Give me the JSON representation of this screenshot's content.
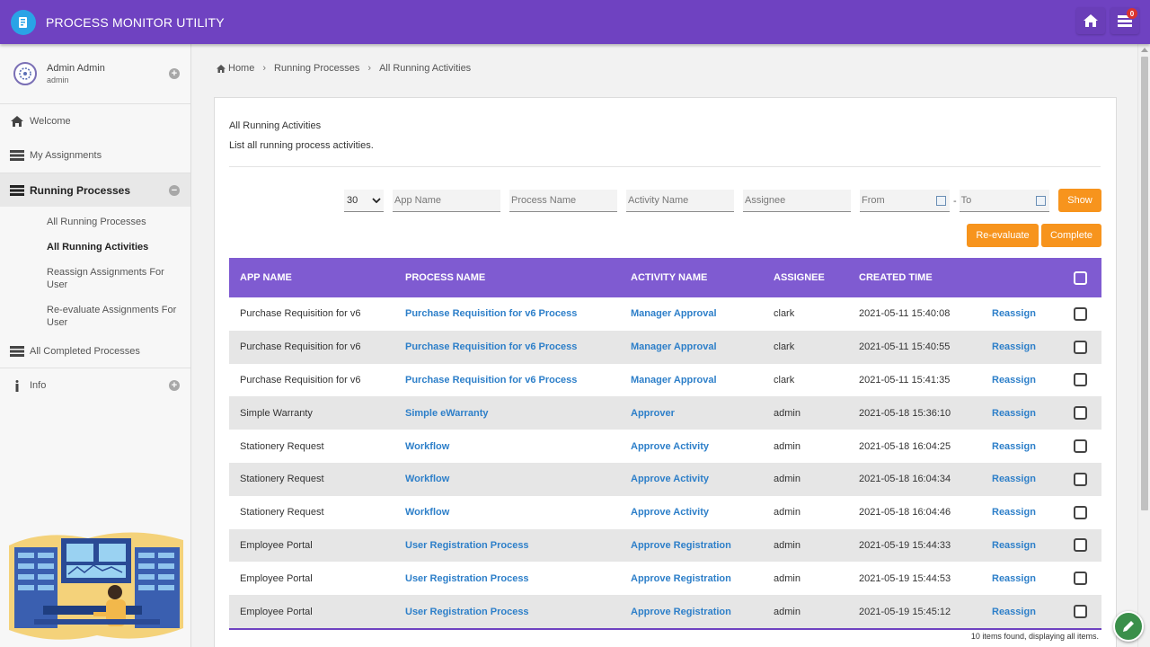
{
  "header": {
    "title": "PROCESS MONITOR UTILITY",
    "notification_count": "0",
    "icons": [
      "app-logo-icon",
      "home-icon",
      "notifications-icon"
    ]
  },
  "sidebar": {
    "user": {
      "name": "Admin Admin",
      "role": "admin"
    },
    "items": [
      {
        "label": "Welcome",
        "icon": "home-icon"
      },
      {
        "label": "My Assignments",
        "icon": "list-icon"
      },
      {
        "label": "Running Processes",
        "icon": "list-icon"
      },
      {
        "label": "All Completed Processes",
        "icon": "list-icon"
      },
      {
        "label": "Info",
        "icon": "info-icon"
      }
    ],
    "sub_items": [
      "All Running Processes",
      "All Running Activities",
      "Reassign Assignments For User",
      "Re-evaluate Assignments For User"
    ]
  },
  "breadcrumb": {
    "home": "Home",
    "level1": "Running Processes",
    "level2": "All Running Activities"
  },
  "panel": {
    "title": "All Running Activities",
    "description": "List all running process activities."
  },
  "filters": {
    "page_size": "30",
    "app_name_placeholder": "App Name",
    "process_name_placeholder": "Process Name",
    "activity_name_placeholder": "Activity Name",
    "assignee_placeholder": "Assignee",
    "from_placeholder": "From",
    "to_placeholder": "To",
    "dash": "-",
    "show_label": "Show"
  },
  "actions": {
    "reevaluate_label": "Re-evaluate",
    "complete_label": "Complete"
  },
  "table": {
    "headers": [
      "APP NAME",
      "PROCESS NAME",
      "ACTIVITY NAME",
      "ASSIGNEE",
      "CREATED TIME"
    ],
    "rows": [
      {
        "app": "Purchase Requisition for v6",
        "process": "Purchase Requisition for v6 Process",
        "activity": "Manager Approval",
        "assignee": "clark",
        "created": "2021-05-11 15:40:08",
        "action": "Reassign"
      },
      {
        "app": "Purchase Requisition for v6",
        "process": "Purchase Requisition for v6 Process",
        "activity": "Manager Approval",
        "assignee": "clark",
        "created": "2021-05-11 15:40:55",
        "action": "Reassign"
      },
      {
        "app": "Purchase Requisition for v6",
        "process": "Purchase Requisition for v6 Process",
        "activity": "Manager Approval",
        "assignee": "clark",
        "created": "2021-05-11 15:41:35",
        "action": "Reassign"
      },
      {
        "app": "Simple Warranty",
        "process": "Simple eWarranty",
        "activity": "Approver",
        "assignee": "admin",
        "created": "2021-05-18 15:36:10",
        "action": "Reassign"
      },
      {
        "app": "Stationery Request",
        "process": "Workflow",
        "activity": "Approve Activity",
        "assignee": "admin",
        "created": "2021-05-18 16:04:25",
        "action": "Reassign"
      },
      {
        "app": "Stationery Request",
        "process": "Workflow",
        "activity": "Approve Activity",
        "assignee": "admin",
        "created": "2021-05-18 16:04:34",
        "action": "Reassign"
      },
      {
        "app": "Stationery Request",
        "process": "Workflow",
        "activity": "Approve Activity",
        "assignee": "admin",
        "created": "2021-05-18 16:04:46",
        "action": "Reassign"
      },
      {
        "app": "Employee Portal",
        "process": "User Registration Process",
        "activity": "Approve Registration",
        "assignee": "admin",
        "created": "2021-05-19 15:44:33",
        "action": "Reassign"
      },
      {
        "app": "Employee Portal",
        "process": "User Registration Process",
        "activity": "Approve Registration",
        "assignee": "admin",
        "created": "2021-05-19 15:44:53",
        "action": "Reassign"
      },
      {
        "app": "Employee Portal",
        "process": "User Registration Process",
        "activity": "Approve Registration",
        "assignee": "admin",
        "created": "2021-05-19 15:45:12",
        "action": "Reassign"
      }
    ],
    "footer": "10 items found, displaying all items."
  },
  "colors": {
    "header": "#6f42c1",
    "table_header": "#7f5bd1",
    "accent_button": "#f7941d",
    "link": "#2d7fc9"
  }
}
